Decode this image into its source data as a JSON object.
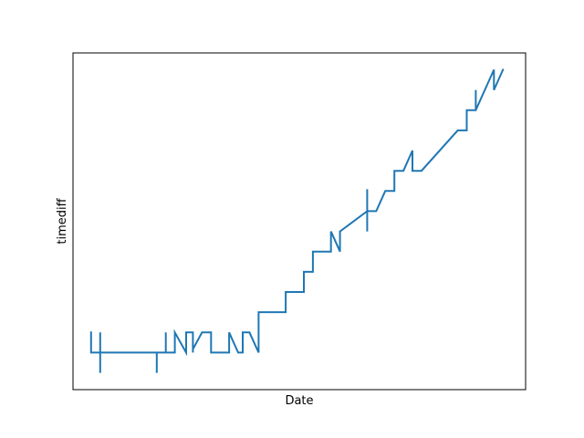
{
  "chart_data": {
    "type": "line",
    "title": "",
    "xlabel": "Date",
    "ylabel": "timediff",
    "xticks": [],
    "yticks": [],
    "grid": false,
    "xlim": [
      0,
      100
    ],
    "ylim": [
      0,
      100
    ],
    "series": [
      {
        "color": "#1f77b4",
        "points": [
          [
            4.0,
            17.0
          ],
          [
            4.0,
            11.0
          ],
          [
            6.0,
            11.0
          ],
          [
            6.0,
            17.0
          ],
          [
            6.0,
            5.0
          ],
          [
            6.0,
            11.0
          ],
          [
            18.5,
            11.0
          ],
          [
            18.5,
            5.0
          ],
          [
            18.5,
            11.0
          ],
          [
            20.5,
            11.0
          ],
          [
            20.5,
            17.0
          ],
          [
            20.5,
            11.0
          ],
          [
            22.5,
            11.0
          ],
          [
            22.5,
            17.0
          ],
          [
            25.0,
            11.0
          ],
          [
            25.0,
            17.0
          ],
          [
            26.5,
            17.0
          ],
          [
            26.5,
            11.0
          ],
          [
            26.5,
            12.0
          ],
          [
            28.5,
            17.0
          ],
          [
            30.5,
            17.0
          ],
          [
            30.5,
            11.0
          ],
          [
            34.5,
            11.0
          ],
          [
            34.5,
            17.0
          ],
          [
            36.5,
            11.0
          ],
          [
            37.5,
            11.0
          ],
          [
            37.5,
            17.0
          ],
          [
            39.0,
            17.0
          ],
          [
            41.0,
            11.0
          ],
          [
            41.0,
            17.0
          ],
          [
            41.0,
            23.0
          ],
          [
            47.0,
            23.0
          ],
          [
            47.0,
            29.0
          ],
          [
            51.0,
            29.0
          ],
          [
            51.0,
            35.0
          ],
          [
            53.0,
            35.0
          ],
          [
            53.0,
            41.0
          ],
          [
            57.0,
            41.0
          ],
          [
            57.0,
            47.0
          ],
          [
            59.0,
            41.0
          ],
          [
            59.0,
            47.0
          ],
          [
            65.0,
            53.0
          ],
          [
            65.0,
            59.5
          ],
          [
            65.0,
            47.0
          ],
          [
            65.0,
            53.0
          ],
          [
            67.0,
            53.0
          ],
          [
            69.0,
            59.0
          ],
          [
            71.0,
            59.0
          ],
          [
            71.0,
            65.0
          ],
          [
            73.0,
            65.0
          ],
          [
            75.0,
            71.0
          ],
          [
            75.0,
            65.0
          ],
          [
            77.0,
            65.0
          ],
          [
            85.0,
            77.0
          ],
          [
            87.0,
            77.0
          ],
          [
            87.0,
            83.0
          ],
          [
            89.0,
            83.0
          ],
          [
            89.0,
            89.0
          ],
          [
            89.0,
            83.0
          ],
          [
            93.0,
            95.0
          ],
          [
            93.0,
            89.0
          ],
          [
            95.0,
            95.0
          ]
        ]
      }
    ]
  }
}
